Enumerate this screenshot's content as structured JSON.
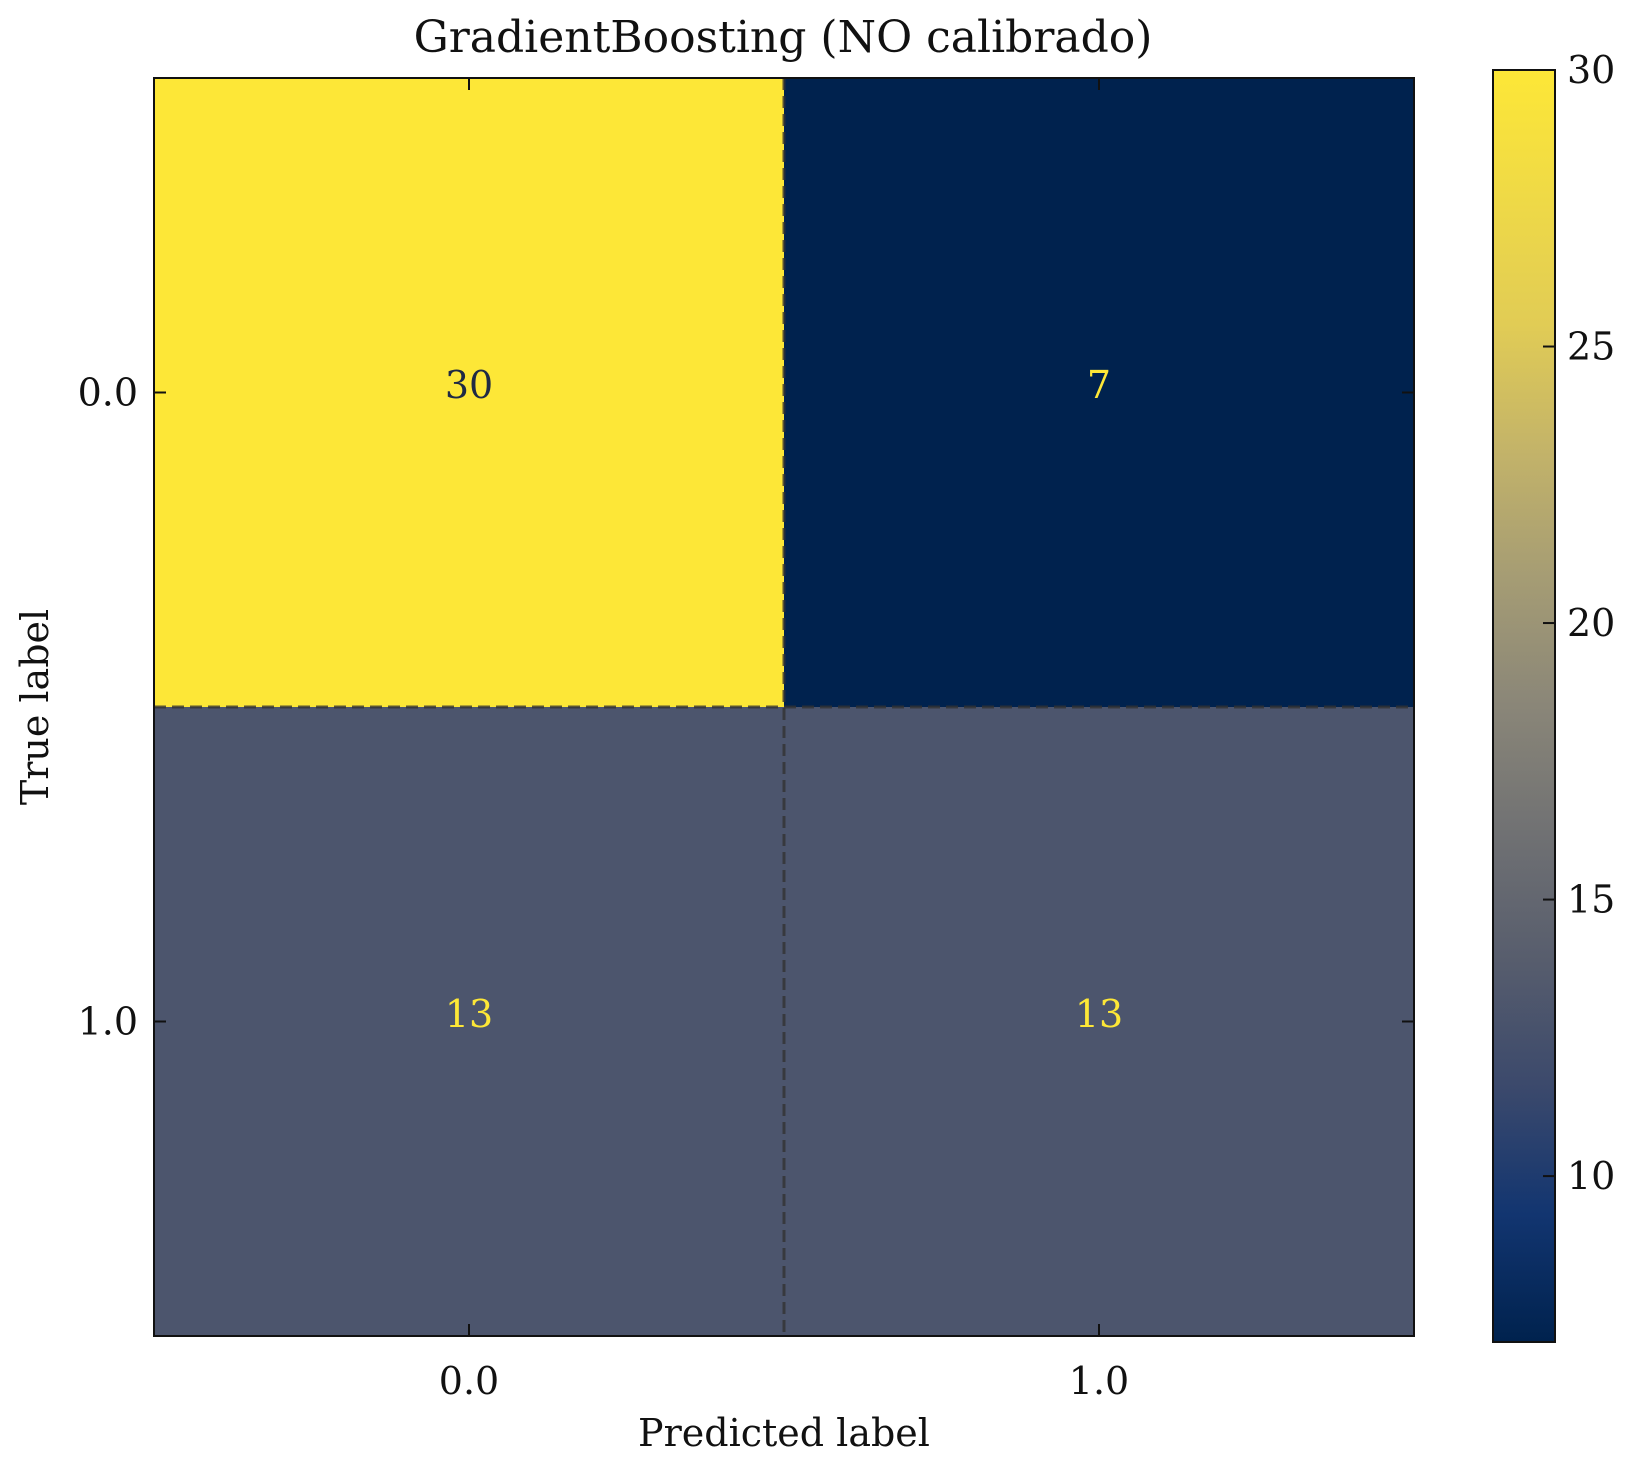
{
  "chart_data": {
    "type": "heatmap",
    "title": "GradientBoosting (NO calibrado)",
    "xlabel": "Predicted label",
    "ylabel": "True label",
    "x_categories": [
      "0.0",
      "1.0"
    ],
    "y_categories": [
      "0.0",
      "1.0"
    ],
    "matrix": [
      [
        30,
        7
      ],
      [
        13,
        13
      ]
    ],
    "colorbar": {
      "range": [
        7,
        30
      ],
      "ticks": [
        10,
        15,
        20,
        25,
        30
      ],
      "tick_labels": [
        "10",
        "15",
        "20",
        "25",
        "30"
      ],
      "colormap": "cividis"
    },
    "colors": {
      "high": "#fde737",
      "low": "#00224e",
      "text_on_light": "#1f2a44",
      "text_on_dark": "#fde737"
    }
  }
}
